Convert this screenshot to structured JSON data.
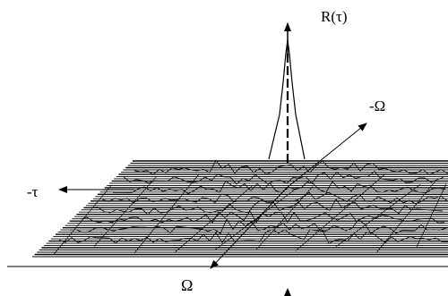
{
  "labels": {
    "r_tau": "R(τ)",
    "neg_omega": "-Ω",
    "neg_tau": "-τ",
    "omega": "Ω"
  },
  "colors": {
    "ink": "#000000",
    "background": "#ffffff"
  }
}
